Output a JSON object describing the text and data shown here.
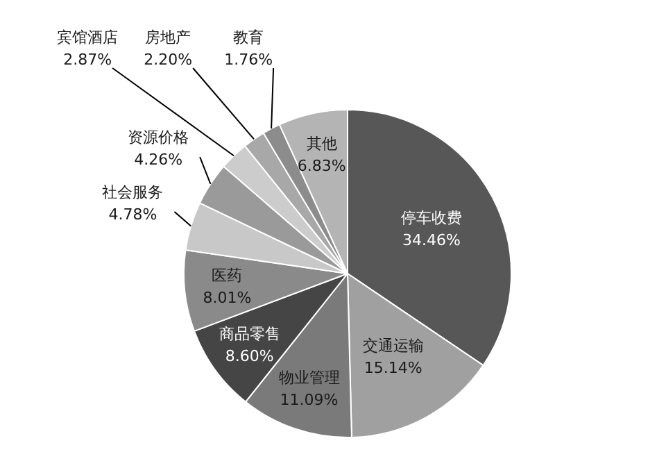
{
  "chart_data": {
    "type": "pie",
    "categories": [
      "停车收费",
      "交通运输",
      "物业管理",
      "商品零售",
      "医药",
      "社会服务",
      "资源价格",
      "宾馆酒店",
      "房地产",
      "教育",
      "其他"
    ],
    "values": [
      34.46,
      15.14,
      11.09,
      8.6,
      8.01,
      4.78,
      4.26,
      2.87,
      2.2,
      1.76,
      6.83
    ],
    "value_labels": [
      "34.46%",
      "15.14%",
      "11.09%",
      "8.60%",
      "8.01%",
      "4.78%",
      "4.26%",
      "2.87%",
      "2.20%",
      "1.76%",
      "6.83%"
    ],
    "colors": [
      "#575757",
      "#a0a0a0",
      "#7a7a7a",
      "#454545",
      "#8a8a8a",
      "#c8c8c8",
      "#9a9a9a",
      "#cccccc",
      "#a8a8a8",
      "#8c8c8c",
      "#b4b4b4"
    ]
  }
}
